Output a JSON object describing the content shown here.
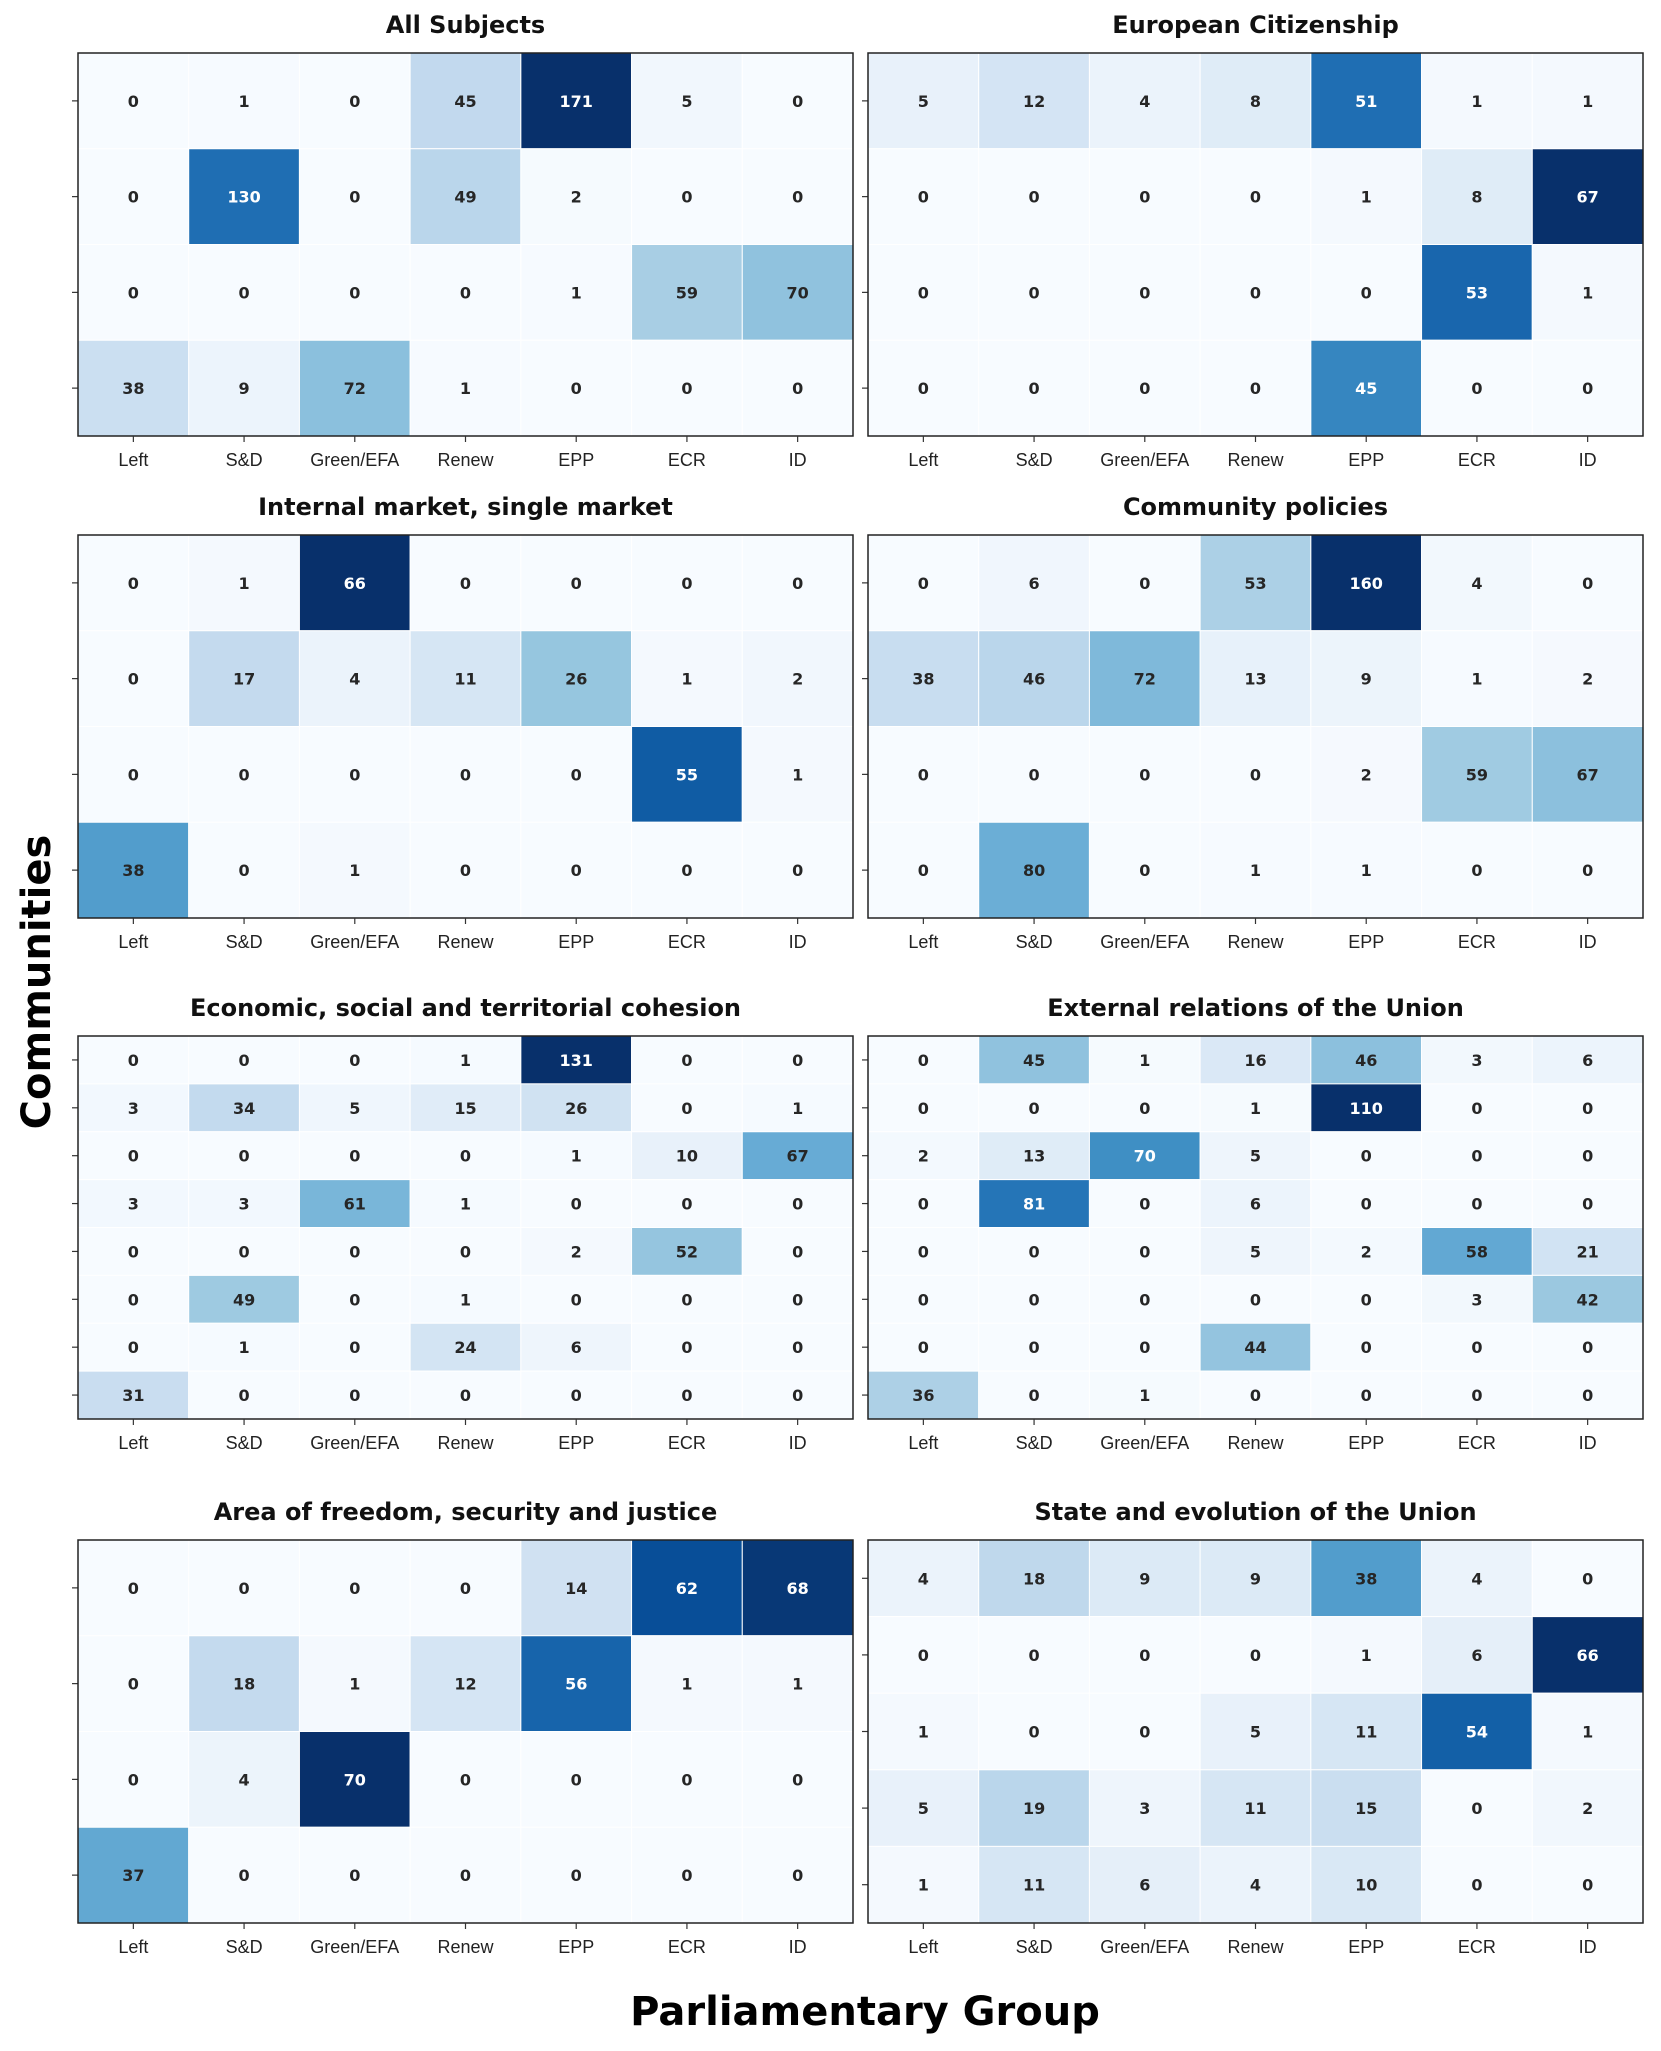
{
  "figure": {
    "xlabel": "Parliamentary Group",
    "ylabel": "Communities",
    "colormap": "Blues"
  },
  "chart_data": [
    {
      "type": "heatmap",
      "title": "All Subjects",
      "x_categories": [
        "Left",
        "S&D",
        "Green/EFA",
        "Renew",
        "EPP",
        "ECR",
        "ID"
      ],
      "values": [
        [
          0,
          1,
          0,
          45,
          171,
          5,
          0
        ],
        [
          0,
          130,
          0,
          49,
          2,
          0,
          0
        ],
        [
          0,
          0,
          0,
          0,
          1,
          59,
          70
        ],
        [
          38,
          9,
          72,
          1,
          0,
          0,
          0
        ]
      ]
    },
    {
      "type": "heatmap",
      "title": "European Citizenship",
      "x_categories": [
        "Left",
        "S&D",
        "Green/EFA",
        "Renew",
        "EPP",
        "ECR",
        "ID"
      ],
      "values": [
        [
          5,
          12,
          4,
          8,
          51,
          1,
          1
        ],
        [
          0,
          0,
          0,
          0,
          1,
          8,
          67
        ],
        [
          0,
          0,
          0,
          0,
          0,
          53,
          1
        ],
        [
          0,
          0,
          0,
          0,
          45,
          0,
          0
        ]
      ]
    },
    {
      "type": "heatmap",
      "title": "Internal market, single market",
      "x_categories": [
        "Left",
        "S&D",
        "Green/EFA",
        "Renew",
        "EPP",
        "ECR",
        "ID"
      ],
      "values": [
        [
          0,
          1,
          66,
          0,
          0,
          0,
          0
        ],
        [
          0,
          17,
          4,
          11,
          26,
          1,
          2
        ],
        [
          0,
          0,
          0,
          0,
          0,
          55,
          1
        ],
        [
          38,
          0,
          1,
          0,
          0,
          0,
          0
        ]
      ]
    },
    {
      "type": "heatmap",
      "title": "Community policies",
      "x_categories": [
        "Left",
        "S&D",
        "Green/EFA",
        "Renew",
        "EPP",
        "ECR",
        "ID"
      ],
      "values": [
        [
          0,
          6,
          0,
          53,
          160,
          4,
          0
        ],
        [
          38,
          46,
          72,
          13,
          9,
          1,
          2
        ],
        [
          0,
          0,
          0,
          0,
          2,
          59,
          67
        ],
        [
          0,
          80,
          0,
          1,
          1,
          0,
          0
        ]
      ]
    },
    {
      "type": "heatmap",
      "title": "Economic, social and territorial cohesion",
      "x_categories": [
        "Left",
        "S&D",
        "Green/EFA",
        "Renew",
        "EPP",
        "ECR",
        "ID"
      ],
      "values": [
        [
          0,
          0,
          0,
          1,
          131,
          0,
          0
        ],
        [
          3,
          34,
          5,
          15,
          26,
          0,
          1
        ],
        [
          0,
          0,
          0,
          0,
          1,
          10,
          67
        ],
        [
          3,
          3,
          61,
          1,
          0,
          0,
          0
        ],
        [
          0,
          0,
          0,
          0,
          2,
          52,
          0
        ],
        [
          0,
          49,
          0,
          1,
          0,
          0,
          0
        ],
        [
          0,
          1,
          0,
          24,
          6,
          0,
          0
        ],
        [
          31,
          0,
          0,
          0,
          0,
          0,
          0
        ]
      ]
    },
    {
      "type": "heatmap",
      "title": "External relations of the Union",
      "x_categories": [
        "Left",
        "S&D",
        "Green/EFA",
        "Renew",
        "EPP",
        "ECR",
        "ID"
      ],
      "values": [
        [
          0,
          45,
          1,
          16,
          46,
          3,
          6
        ],
        [
          0,
          0,
          0,
          1,
          110,
          0,
          0
        ],
        [
          2,
          13,
          70,
          5,
          0,
          0,
          0
        ],
        [
          0,
          81,
          0,
          6,
          0,
          0,
          0
        ],
        [
          0,
          0,
          0,
          5,
          2,
          58,
          21
        ],
        [
          0,
          0,
          0,
          0,
          0,
          3,
          42
        ],
        [
          0,
          0,
          0,
          44,
          0,
          0,
          0
        ],
        [
          36,
          0,
          1,
          0,
          0,
          0,
          0
        ]
      ]
    },
    {
      "type": "heatmap",
      "title": "Area of freedom, security and justice",
      "x_categories": [
        "Left",
        "S&D",
        "Green/EFA",
        "Renew",
        "EPP",
        "ECR",
        "ID"
      ],
      "values": [
        [
          0,
          0,
          0,
          0,
          14,
          62,
          68
        ],
        [
          0,
          18,
          1,
          12,
          56,
          1,
          1
        ],
        [
          0,
          4,
          70,
          0,
          0,
          0,
          0
        ],
        [
          37,
          0,
          0,
          0,
          0,
          0,
          0
        ]
      ]
    },
    {
      "type": "heatmap",
      "title": "State and evolution of the Union",
      "x_categories": [
        "Left",
        "S&D",
        "Green/EFA",
        "Renew",
        "EPP",
        "ECR",
        "ID"
      ],
      "values": [
        [
          4,
          18,
          9,
          9,
          38,
          4,
          0
        ],
        [
          0,
          0,
          0,
          0,
          1,
          6,
          66
        ],
        [
          1,
          0,
          0,
          5,
          11,
          54,
          1
        ],
        [
          5,
          19,
          3,
          11,
          15,
          0,
          2
        ],
        [
          1,
          11,
          6,
          4,
          10,
          0,
          0
        ]
      ]
    }
  ]
}
